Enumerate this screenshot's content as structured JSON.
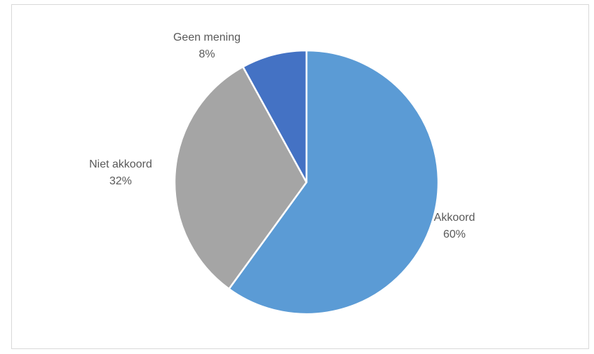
{
  "chart_data": {
    "type": "pie",
    "title": "",
    "slices": [
      {
        "label": "Akkoord",
        "value": 60,
        "value_label": "60%",
        "color": "#5b9bd5"
      },
      {
        "label": "Niet akkoord",
        "value": 32,
        "value_label": "32%",
        "color": "#a5a5a5"
      },
      {
        "label": "Geen mening",
        "value": 8,
        "value_label": "8%",
        "color": "#4472c4"
      }
    ],
    "start": "12 o'clock",
    "direction": "clockwise",
    "legend": "none",
    "labels": "outside, name and percentage"
  }
}
